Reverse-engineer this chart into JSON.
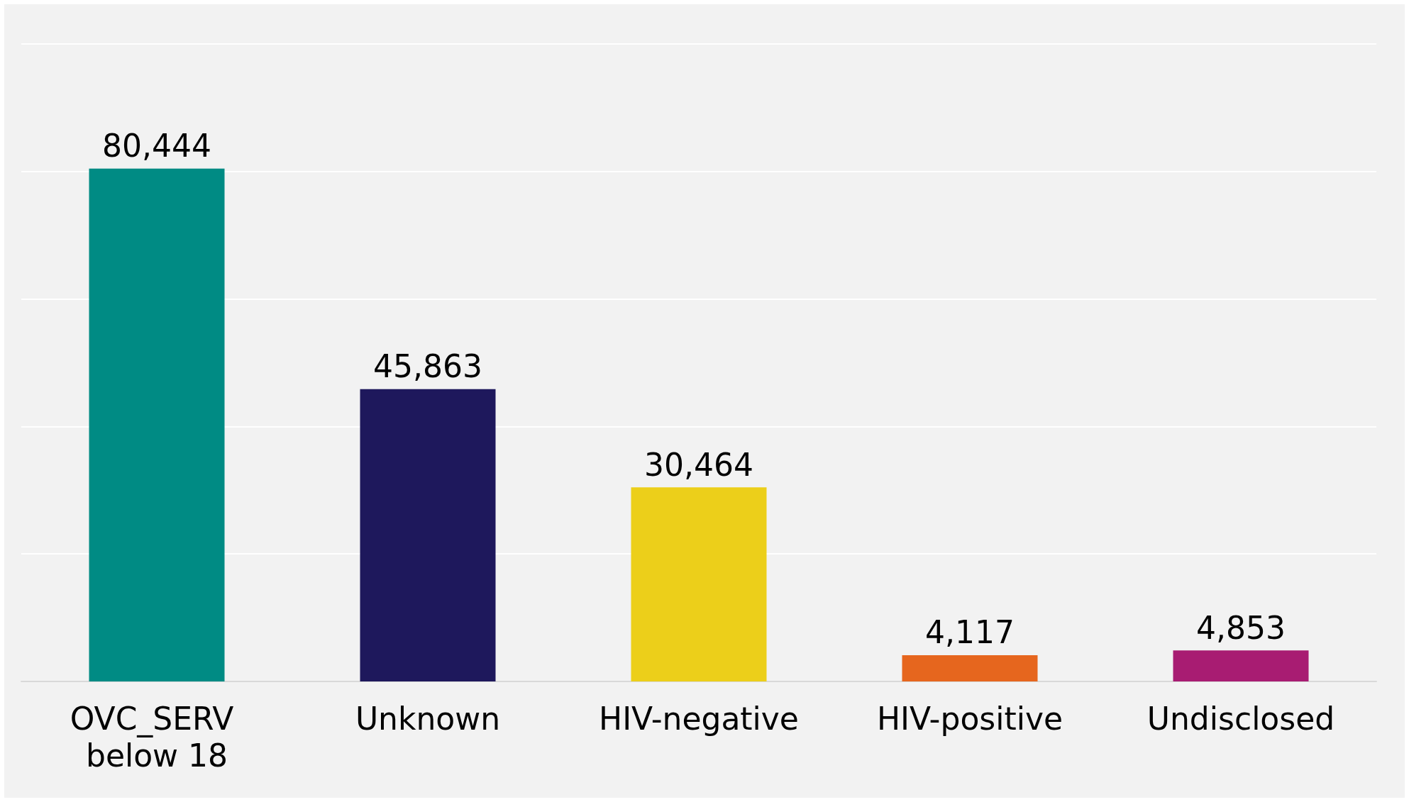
{
  "chart_data": {
    "type": "bar",
    "categories": [
      "OVC_SERV below 18",
      "Unknown",
      "HIV-negative",
      "HIV-positive",
      "Undisclosed"
    ],
    "values": [
      80444,
      45863,
      30464,
      4117,
      4853
    ],
    "value_labels": [
      "80,444",
      "45,863",
      "30,464",
      "4,117",
      "4,853"
    ],
    "colors": [
      "#008b84",
      "#1e185c",
      "#eccf1a",
      "#e6661e",
      "#a81c72"
    ],
    "tick_labels": "x",
    "grid": "y"
  }
}
